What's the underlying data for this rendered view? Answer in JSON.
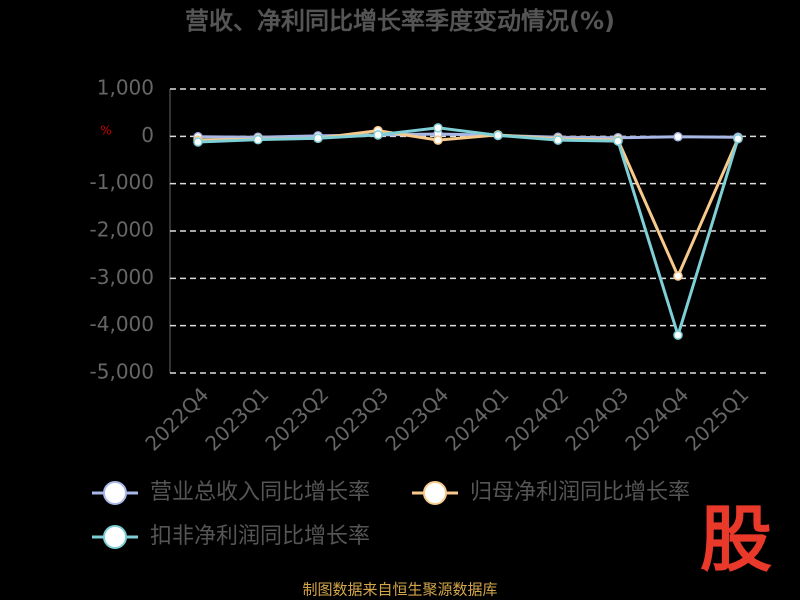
{
  "chart_data": {
    "type": "line",
    "title": "营收、净利同比增长率季度变动情况(%)",
    "unit_mark": "%",
    "categories": [
      "2022Q4",
      "2023Q1",
      "2023Q2",
      "2023Q3",
      "2023Q4",
      "2024Q1",
      "2024Q2",
      "2024Q3",
      "2024Q4",
      "2025Q1"
    ],
    "series": [
      {
        "name": "营业总收入同比增长率",
        "color": "#a9b8e6",
        "values": [
          -10,
          -20,
          10,
          30,
          50,
          20,
          -20,
          -30,
          -10,
          -20
        ]
      },
      {
        "name": "归母净利润同比增长率",
        "color": "#f7c98b",
        "values": [
          -80,
          -60,
          -40,
          120,
          -80,
          30,
          -60,
          -80,
          -2950,
          -50
        ]
      },
      {
        "name": "扣非净利润同比增长率",
        "color": "#7fcfd6",
        "values": [
          -120,
          -70,
          -40,
          30,
          180,
          20,
          -80,
          -100,
          -4200,
          -50
        ]
      }
    ],
    "ylim": [
      -5000,
      1000
    ],
    "yticks": [
      {
        "value": -5000,
        "label": "-5,000"
      },
      {
        "value": -4000,
        "label": "-4,000"
      },
      {
        "value": -3000,
        "label": "-3,000"
      },
      {
        "value": -2000,
        "label": "-2,000"
      },
      {
        "value": -1000,
        "label": "-1,000"
      },
      0,
      {
        "value": 1000,
        "label": "1,000"
      }
    ],
    "grid": true,
    "source": "制图数据来自恒生聚源数据库",
    "logo": "股"
  }
}
